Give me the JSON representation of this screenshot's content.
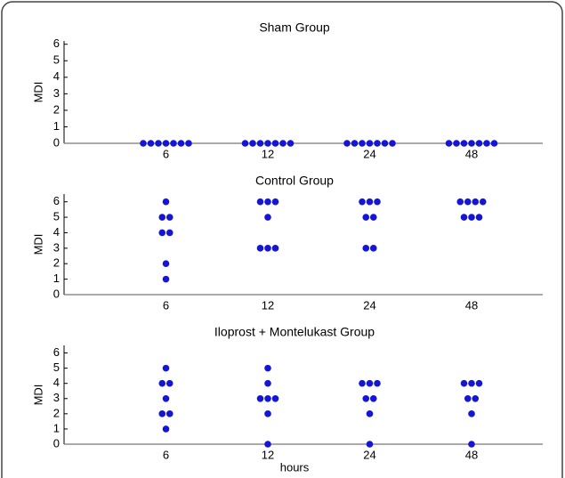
{
  "chart_data": [
    {
      "type": "scatter",
      "title": "Sham Group",
      "ylabel": "MDI",
      "categories": [
        "6",
        "12",
        "24",
        "48"
      ],
      "color": "#1515d8",
      "values": [
        [
          0,
          0,
          0,
          0,
          0,
          0,
          0
        ],
        [
          0,
          0,
          0,
          0,
          0,
          0,
          0
        ],
        [
          0,
          0,
          0,
          0,
          0,
          0,
          0
        ],
        [
          0,
          0,
          0,
          0,
          0,
          0,
          0
        ]
      ],
      "ylim": [
        0,
        6.2
      ],
      "yticks": [
        0,
        1,
        2,
        3,
        4,
        5,
        6
      ]
    },
    {
      "type": "scatter",
      "title": "Control Group",
      "ylabel": "MDI",
      "categories": [
        "6",
        "12",
        "24",
        "48"
      ],
      "color": "#1515d8",
      "values": [
        [
          6,
          5,
          5,
          4,
          4,
          2,
          1
        ],
        [
          6,
          6,
          6,
          5,
          3,
          3,
          3
        ],
        [
          6,
          6,
          6,
          5,
          5,
          3,
          3
        ],
        [
          6,
          6,
          6,
          6,
          5,
          5,
          5
        ]
      ],
      "ylim": [
        0,
        6.5
      ],
      "yticks": [
        0,
        1,
        2,
        3,
        4,
        5,
        6
      ]
    },
    {
      "type": "scatter",
      "title": "Iloprost + Montelukast Group",
      "ylabel": "MDI",
      "xlabel": "hours",
      "categories": [
        "6",
        "12",
        "24",
        "48"
      ],
      "color": "#1515d8",
      "values": [
        [
          5,
          4,
          4,
          3,
          2,
          2,
          1
        ],
        [
          5,
          4,
          3,
          3,
          3,
          2,
          0
        ],
        [
          4,
          4,
          4,
          3,
          3,
          2,
          0
        ],
        [
          4,
          4,
          4,
          3,
          3,
          2,
          0
        ]
      ],
      "ylim": [
        0,
        6.5
      ],
      "yticks": [
        0,
        1,
        2,
        3,
        4,
        5,
        6
      ]
    }
  ]
}
